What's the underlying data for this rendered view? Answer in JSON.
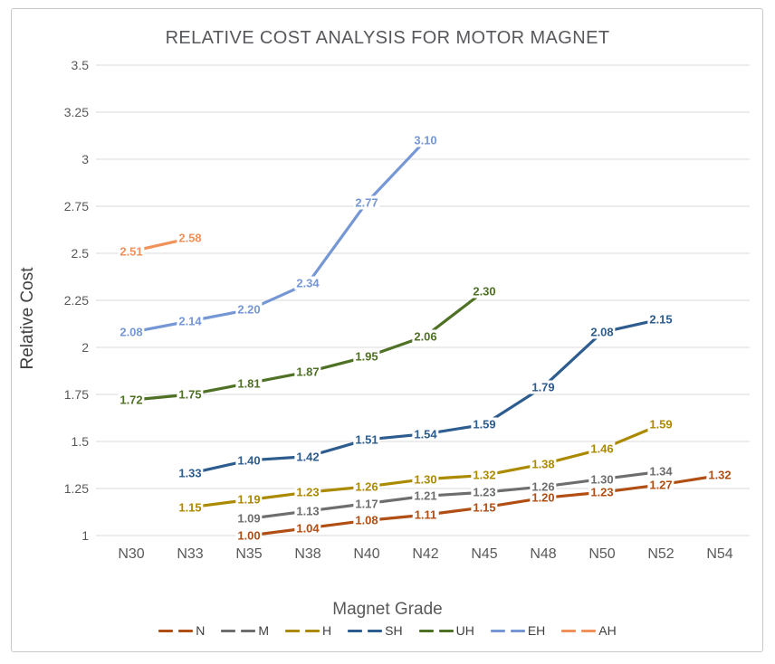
{
  "chart_data": {
    "type": "line",
    "title": "RELATIVE COST ANALYSIS FOR MOTOR MAGNET",
    "xlabel": "Magnet Grade",
    "ylabel": "Relative Cost",
    "categories": [
      "N30",
      "N33",
      "N35",
      "N38",
      "N40",
      "N42",
      "N45",
      "N48",
      "N50",
      "N52",
      "N54"
    ],
    "y_ticks": [
      1,
      1.25,
      1.5,
      1.75,
      2,
      2.25,
      2.5,
      2.75,
      3,
      3.25,
      3.5
    ],
    "ylim": [
      1,
      3.5
    ],
    "grid": true,
    "grid_color": "#D9D9D9",
    "axis_text_color": "#595959",
    "legend_position": "bottom",
    "line_style_legend": "dashed",
    "data_labels": "shown, 2 decimals, centered on points",
    "series": [
      {
        "name": "N",
        "color": "#B04E13",
        "start_category": "N35",
        "start_index": 2,
        "values": [
          1.0,
          1.04,
          1.08,
          1.11,
          1.15,
          1.2,
          1.23,
          1.27,
          1.32
        ]
      },
      {
        "name": "M",
        "color": "#6E6E6E",
        "start_category": "N35",
        "start_index": 2,
        "values": [
          1.09,
          1.13,
          1.17,
          1.21,
          1.23,
          1.26,
          1.3,
          1.34
        ]
      },
      {
        "name": "H",
        "color": "#AC8A00",
        "start_category": "N33",
        "start_index": 1,
        "values": [
          1.15,
          1.19,
          1.23,
          1.26,
          1.3,
          1.32,
          1.38,
          1.46,
          1.59
        ]
      },
      {
        "name": "SH",
        "color": "#2D5C8F",
        "start_category": "N33",
        "start_index": 1,
        "values": [
          1.33,
          1.4,
          1.42,
          1.51,
          1.54,
          1.59,
          1.79,
          2.08,
          2.15
        ]
      },
      {
        "name": "UH",
        "color": "#4F7125",
        "start_category": "N30",
        "start_index": 0,
        "values": [
          1.72,
          1.75,
          1.81,
          1.87,
          1.95,
          2.06,
          2.3
        ]
      },
      {
        "name": "EH",
        "color": "#7697D6",
        "start_category": "N30",
        "start_index": 0,
        "values": [
          2.08,
          2.14,
          2.2,
          2.34,
          2.77,
          3.1
        ]
      },
      {
        "name": "AH",
        "color": "#F0915A",
        "start_category": "N30",
        "start_index": 0,
        "values": [
          2.51,
          2.58
        ]
      }
    ]
  }
}
